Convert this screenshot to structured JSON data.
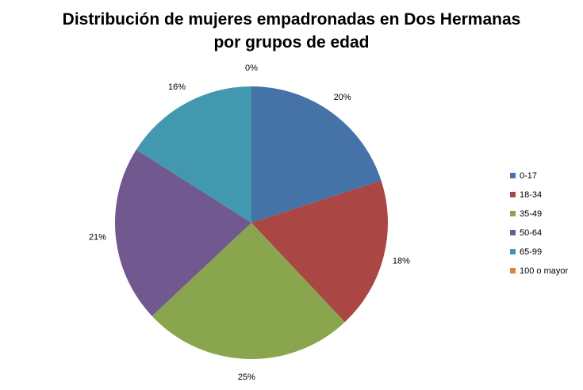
{
  "chart_data": {
    "type": "pie",
    "title": "Distribución de mujeres empadronadas en Dos Hermanas por grupos de edad",
    "categories": [
      "0-17",
      "18-34",
      "35-49",
      "50-64",
      "65-99",
      "100 o mayor"
    ],
    "values": [
      20,
      18,
      25,
      21,
      16,
      0
    ],
    "value_labels": [
      "20%",
      "18%",
      "25%",
      "21%",
      "16%",
      "0%"
    ],
    "colors": [
      "#4572a7",
      "#aa4643",
      "#89a54e",
      "#71588f",
      "#4198af",
      "#db843d"
    ],
    "legend": "right"
  }
}
